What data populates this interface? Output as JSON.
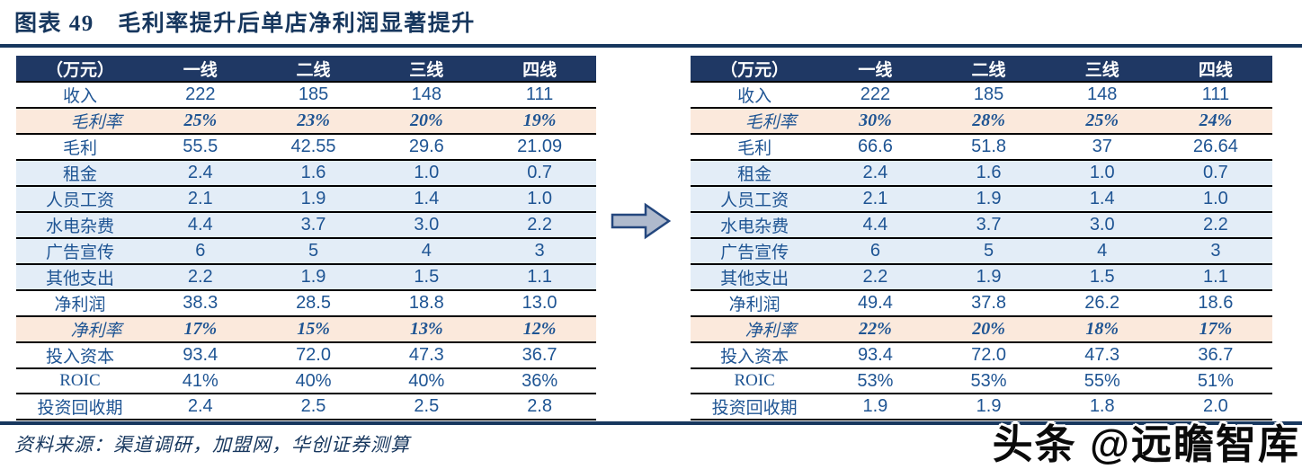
{
  "figure": {
    "title": "图表 49　毛利率提升后单店净利润显著提升",
    "source": "资料来源：渠道调研，加盟网，华创证券测算",
    "watermark": "头条 @远瞻智库"
  },
  "icons": {
    "arrow": "right-block-arrow"
  },
  "colors": {
    "header_navy": "#1F3864",
    "rule_navy": "#17375E",
    "text_blue": "#1E5493",
    "pink_row_bg": "#FBE9DC",
    "blue_row_bg": "#E3EDF7",
    "row_border": "#000000",
    "arrow_fill": "#AFBACD",
    "arrow_stroke": "#24477E"
  },
  "chart_data": [
    {
      "type": "table",
      "name": "single-store-model-before",
      "unit_header": "（万元）",
      "columns": [
        "一线",
        "二线",
        "三线",
        "四线"
      ],
      "rows": [
        {
          "label": "收入",
          "values": [
            "222",
            "185",
            "148",
            "111"
          ],
          "style": "plain"
        },
        {
          "label": "毛利率",
          "values": [
            "25%",
            "23%",
            "20%",
            "19%"
          ],
          "style": "pink"
        },
        {
          "label": "毛利",
          "values": [
            "55.5",
            "42.55",
            "29.6",
            "21.09"
          ],
          "style": "plain"
        },
        {
          "label": "租金",
          "values": [
            "2.4",
            "1.6",
            "1.0",
            "0.7"
          ],
          "style": "blue"
        },
        {
          "label": "人员工资",
          "values": [
            "2.1",
            "1.9",
            "1.4",
            "1.0"
          ],
          "style": "blue"
        },
        {
          "label": "水电杂费",
          "values": [
            "4.4",
            "3.7",
            "3.0",
            "2.2"
          ],
          "style": "blue"
        },
        {
          "label": "广告宣传",
          "values": [
            "6",
            "5",
            "4",
            "3"
          ],
          "style": "blue"
        },
        {
          "label": "其他支出",
          "values": [
            "2.2",
            "1.9",
            "1.5",
            "1.1"
          ],
          "style": "blue"
        },
        {
          "label": "净利润",
          "values": [
            "38.3",
            "28.5",
            "18.8",
            "13.0"
          ],
          "style": "plain"
        },
        {
          "label": "净利率",
          "values": [
            "17%",
            "15%",
            "13%",
            "12%"
          ],
          "style": "pink"
        },
        {
          "label": "投入资本",
          "values": [
            "93.4",
            "72.0",
            "47.3",
            "36.7"
          ],
          "style": "plain"
        },
        {
          "label": "ROIC",
          "values": [
            "41%",
            "40%",
            "40%",
            "36%"
          ],
          "style": "plain"
        },
        {
          "label": "投资回收期",
          "values": [
            "2.4",
            "2.5",
            "2.5",
            "2.8"
          ],
          "style": "plain"
        }
      ]
    },
    {
      "type": "table",
      "name": "single-store-model-after",
      "unit_header": "（万元）",
      "columns": [
        "一线",
        "二线",
        "三线",
        "四线"
      ],
      "rows": [
        {
          "label": "收入",
          "values": [
            "222",
            "185",
            "148",
            "111"
          ],
          "style": "plain"
        },
        {
          "label": "毛利率",
          "values": [
            "30%",
            "28%",
            "25%",
            "24%"
          ],
          "style": "pink"
        },
        {
          "label": "毛利",
          "values": [
            "66.6",
            "51.8",
            "37",
            "26.64"
          ],
          "style": "plain"
        },
        {
          "label": "租金",
          "values": [
            "2.4",
            "1.6",
            "1.0",
            "0.7"
          ],
          "style": "blue"
        },
        {
          "label": "人员工资",
          "values": [
            "2.1",
            "1.9",
            "1.4",
            "1.0"
          ],
          "style": "blue"
        },
        {
          "label": "水电杂费",
          "values": [
            "4.4",
            "3.7",
            "3.0",
            "2.2"
          ],
          "style": "blue"
        },
        {
          "label": "广告宣传",
          "values": [
            "6",
            "5",
            "4",
            "3"
          ],
          "style": "blue"
        },
        {
          "label": "其他支出",
          "values": [
            "2.2",
            "1.9",
            "1.5",
            "1.1"
          ],
          "style": "blue"
        },
        {
          "label": "净利润",
          "values": [
            "49.4",
            "37.8",
            "26.2",
            "18.6"
          ],
          "style": "plain"
        },
        {
          "label": "净利率",
          "values": [
            "22%",
            "20%",
            "18%",
            "17%"
          ],
          "style": "pink"
        },
        {
          "label": "投入资本",
          "values": [
            "93.4",
            "72.0",
            "47.3",
            "36.7"
          ],
          "style": "plain"
        },
        {
          "label": "ROIC",
          "values": [
            "53%",
            "53%",
            "55%",
            "51%"
          ],
          "style": "plain"
        },
        {
          "label": "投资回收期",
          "values": [
            "1.9",
            "1.9",
            "1.8",
            "2.0"
          ],
          "style": "plain"
        }
      ]
    }
  ]
}
